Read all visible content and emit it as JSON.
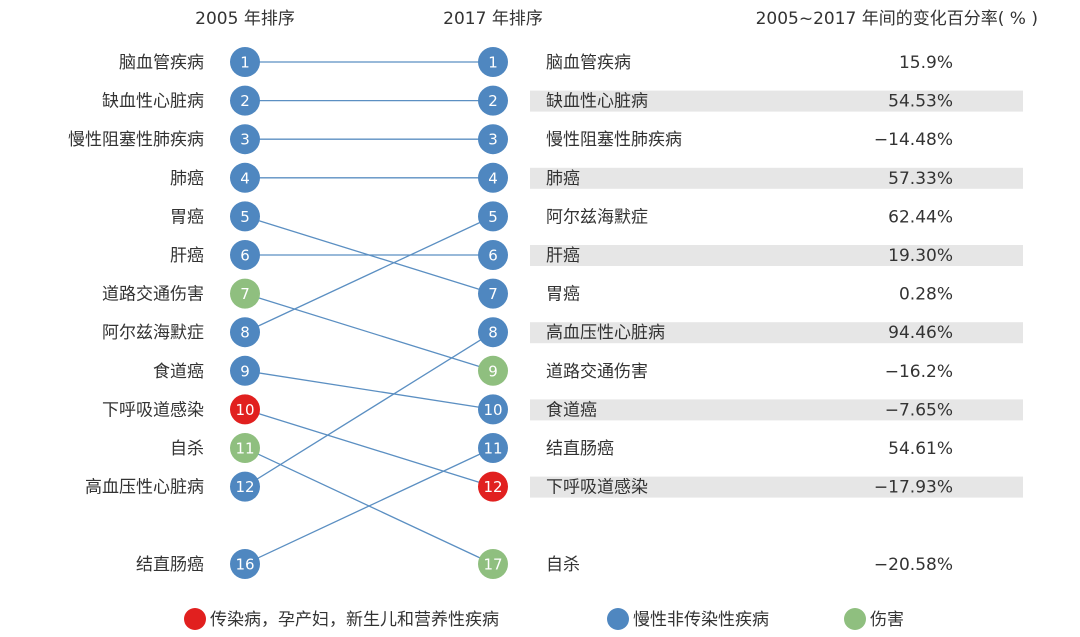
{
  "colors": {
    "infectious": "#e1201f",
    "chronic": "#4f87c0",
    "injury": "#8fbf7f",
    "line": "#5b8fc2",
    "stripe": "#e6e6e6"
  },
  "chart_data": {
    "type": "slope",
    "headers": {
      "left": "2005 年排序",
      "middle": "2017 年排序",
      "right": "2005~2017 年间的变化百分率( % )"
    },
    "left_ranks": [
      {
        "name": "脑血管疾病",
        "rank": 1,
        "group": "chronic"
      },
      {
        "name": "缺血性心脏病",
        "rank": 2,
        "group": "chronic"
      },
      {
        "name": "慢性阻塞性肺疾病",
        "rank": 3,
        "group": "chronic"
      },
      {
        "name": "肺癌",
        "rank": 4,
        "group": "chronic"
      },
      {
        "name": "胃癌",
        "rank": 5,
        "group": "chronic"
      },
      {
        "name": "肝癌",
        "rank": 6,
        "group": "chronic"
      },
      {
        "name": "道路交通伤害",
        "rank": 7,
        "group": "injury"
      },
      {
        "name": "阿尔兹海默症",
        "rank": 8,
        "group": "chronic"
      },
      {
        "name": "食道癌",
        "rank": 9,
        "group": "chronic"
      },
      {
        "name": "下呼吸道感染",
        "rank": 10,
        "group": "infectious"
      },
      {
        "name": "自杀",
        "rank": 11,
        "group": "injury"
      },
      {
        "name": "高血压性心脏病",
        "rank": 12,
        "group": "chronic"
      },
      {
        "name": "结直肠癌",
        "rank": 16,
        "group": "chronic"
      }
    ],
    "right_ranks": [
      {
        "name": "脑血管疾病",
        "rank": 1,
        "group": "chronic",
        "change": "15.9%"
      },
      {
        "name": "缺血性心脏病",
        "rank": 2,
        "group": "chronic",
        "change": "54.53%"
      },
      {
        "name": "慢性阻塞性肺疾病",
        "rank": 3,
        "group": "chronic",
        "change": "−14.48%"
      },
      {
        "name": "肺癌",
        "rank": 4,
        "group": "chronic",
        "change": "57.33%"
      },
      {
        "name": "阿尔兹海默症",
        "rank": 5,
        "group": "chronic",
        "change": "62.44%"
      },
      {
        "name": "肝癌",
        "rank": 6,
        "group": "chronic",
        "change": "19.30%"
      },
      {
        "name": "胃癌",
        "rank": 7,
        "group": "chronic",
        "change": "0.28%"
      },
      {
        "name": "高血压性心脏病",
        "rank": 8,
        "group": "chronic",
        "change": "94.46%"
      },
      {
        "name": "道路交通伤害",
        "rank": 9,
        "group": "injury",
        "change": "−16.2%"
      },
      {
        "name": "食道癌",
        "rank": 10,
        "group": "chronic",
        "change": "−7.65%"
      },
      {
        "name": "结直肠癌",
        "rank": 11,
        "group": "chronic",
        "change": "54.61%"
      },
      {
        "name": "下呼吸道感染",
        "rank": 12,
        "group": "infectious",
        "change": "−17.93%"
      },
      {
        "name": "自杀",
        "rank": 17,
        "group": "injury",
        "change": "−20.58%"
      }
    ],
    "legend": [
      {
        "group": "infectious",
        "label": "传染病，孕产妇，新生儿和营养性疾病"
      },
      {
        "group": "chronic",
        "label": "慢性非传染性疾病"
      },
      {
        "group": "injury",
        "label": "伤害"
      }
    ]
  }
}
